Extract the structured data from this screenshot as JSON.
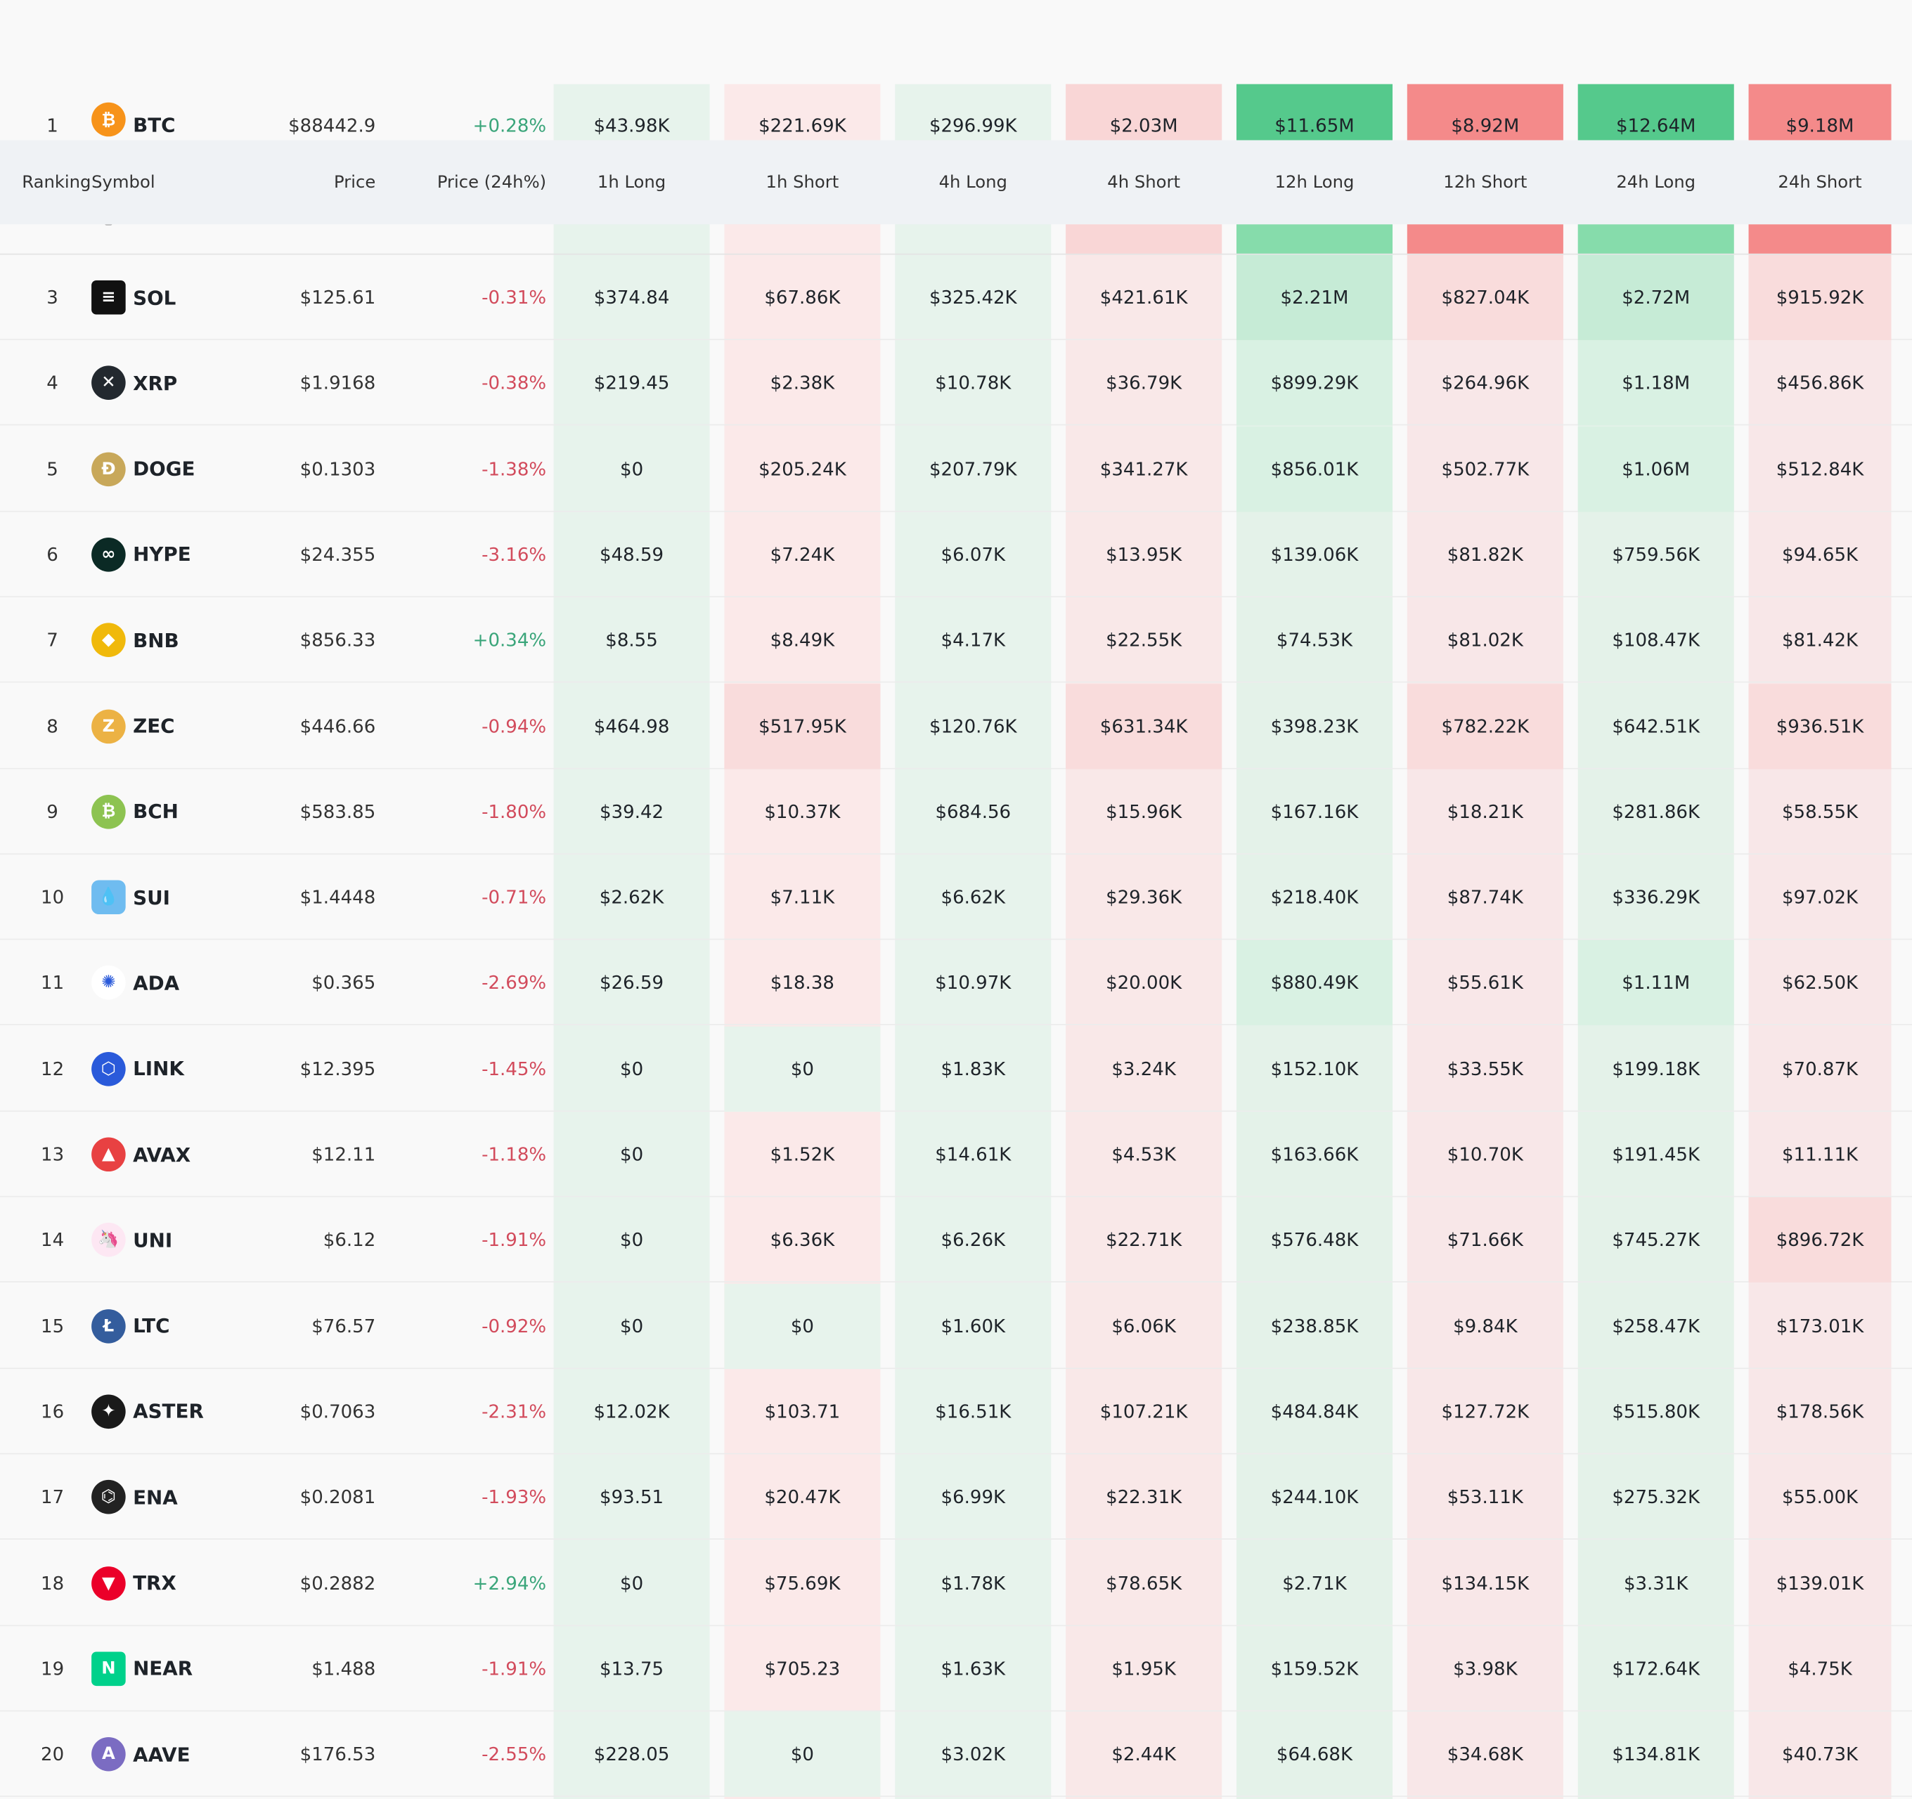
{
  "colors": {
    "long_col_bg": "#e6f3ec",
    "short_col_bg": "#fbe9e9",
    "positive_text": "#3aa57a",
    "negative_text": "#d24b5c",
    "header_bg": "#eff2f5"
  },
  "header": {
    "ranking": "Ranking",
    "symbol": "Symbol",
    "price": "Price",
    "price_change": "Price (24h%)",
    "h1_long": "1h Long",
    "h1_short": "1h Short",
    "h4_long": "4h Long",
    "h4_short": "4h Short",
    "h12_long": "12h Long",
    "h12_short": "12h Short",
    "h24_long": "24h Long",
    "h24_short": "24h Short"
  },
  "pinned_row": {
    "rank": "1",
    "symbol": "BTC",
    "icon": "bitcoin-icon",
    "price": "$88442.9",
    "change": "+0.28%",
    "dir": "up",
    "vals": [
      "$43.98K",
      "$221.69K",
      "$296.99K",
      "$2.03M",
      "$11.65M",
      "$8.92M",
      "$12.64M",
      "$9.18M"
    ]
  },
  "rows": [
    {
      "rank": "3",
      "symbol": "SOL",
      "icon": "solana-icon",
      "icon_bg": "#111111",
      "icon_char": "≡",
      "price": "$125.61",
      "change": "-0.31%",
      "dir": "down",
      "vals": [
        "$374.84",
        "$67.86K",
        "$325.42K",
        "$421.61K",
        "$2.21M",
        "$827.04K",
        "$2.72M",
        "$915.92K"
      ]
    },
    {
      "rank": "4",
      "symbol": "XRP",
      "icon": "xrp-icon",
      "icon_bg": "#23292f",
      "icon_char": "✕",
      "price": "$1.9168",
      "change": "-0.38%",
      "dir": "down",
      "vals": [
        "$219.45",
        "$2.38K",
        "$10.78K",
        "$36.79K",
        "$899.29K",
        "$264.96K",
        "$1.18M",
        "$456.86K"
      ]
    },
    {
      "rank": "5",
      "symbol": "DOGE",
      "icon": "dogecoin-icon",
      "icon_bg": "#c8a85a",
      "icon_char": "Ð",
      "price": "$0.1303",
      "change": "-1.38%",
      "dir": "down",
      "vals": [
        "$0",
        "$205.24K",
        "$207.79K",
        "$341.27K",
        "$856.01K",
        "$502.77K",
        "$1.06M",
        "$512.84K"
      ]
    },
    {
      "rank": "6",
      "symbol": "HYPE",
      "icon": "hyperliquid-icon",
      "icon_bg": "#0b2a25",
      "icon_char": "∞",
      "price": "$24.355",
      "change": "-3.16%",
      "dir": "down",
      "vals": [
        "$48.59",
        "$7.24K",
        "$6.07K",
        "$13.95K",
        "$139.06K",
        "$81.82K",
        "$759.56K",
        "$94.65K"
      ]
    },
    {
      "rank": "7",
      "symbol": "BNB",
      "icon": "bnb-icon",
      "icon_bg": "#f0b90b",
      "icon_char": "◆",
      "price": "$856.33",
      "change": "+0.34%",
      "dir": "up",
      "vals": [
        "$8.55",
        "$8.49K",
        "$4.17K",
        "$22.55K",
        "$74.53K",
        "$81.02K",
        "$108.47K",
        "$81.42K"
      ]
    },
    {
      "rank": "8",
      "symbol": "ZEC",
      "icon": "zcash-icon",
      "icon_bg": "#ecb244",
      "icon_char": "Z",
      "price": "$446.66",
      "change": "-0.94%",
      "dir": "down",
      "vals": [
        "$464.98",
        "$517.95K",
        "$120.76K",
        "$631.34K",
        "$398.23K",
        "$782.22K",
        "$642.51K",
        "$936.51K"
      ]
    },
    {
      "rank": "9",
      "symbol": "BCH",
      "icon": "bitcoin-cash-icon",
      "icon_bg": "#8dc351",
      "icon_char": "₿",
      "price": "$583.85",
      "change": "-1.80%",
      "dir": "down",
      "vals": [
        "$39.42",
        "$10.37K",
        "$684.56",
        "$15.96K",
        "$167.16K",
        "$18.21K",
        "$281.86K",
        "$58.55K"
      ]
    },
    {
      "rank": "10",
      "symbol": "SUI",
      "icon": "sui-icon",
      "icon_bg": "#6fbcf0",
      "icon_char": "💧",
      "price": "$1.4448",
      "change": "-0.71%",
      "dir": "down",
      "vals": [
        "$2.62K",
        "$7.11K",
        "$6.62K",
        "$29.36K",
        "$218.40K",
        "$87.74K",
        "$336.29K",
        "$97.02K"
      ]
    },
    {
      "rank": "11",
      "symbol": "ADA",
      "icon": "cardano-icon",
      "icon_bg": "#ffffff",
      "icon_char": "✺",
      "price": "$0.365",
      "change": "-2.69%",
      "dir": "down",
      "vals": [
        "$26.59",
        "$18.38",
        "$10.97K",
        "$20.00K",
        "$880.49K",
        "$55.61K",
        "$1.11M",
        "$62.50K"
      ]
    },
    {
      "rank": "12",
      "symbol": "LINK",
      "icon": "chainlink-icon",
      "icon_bg": "#2a5ada",
      "icon_char": "⬡",
      "price": "$12.395",
      "change": "-1.45%",
      "dir": "down",
      "vals": [
        "$0",
        "$0",
        "$1.83K",
        "$3.24K",
        "$152.10K",
        "$33.55K",
        "$199.18K",
        "$70.87K"
      ]
    },
    {
      "rank": "13",
      "symbol": "AVAX",
      "icon": "avalanche-icon",
      "icon_bg": "#e84142",
      "icon_char": "▲",
      "price": "$12.11",
      "change": "-1.18%",
      "dir": "down",
      "vals": [
        "$0",
        "$1.52K",
        "$14.61K",
        "$4.53K",
        "$163.66K",
        "$10.70K",
        "$191.45K",
        "$11.11K"
      ]
    },
    {
      "rank": "14",
      "symbol": "UNI",
      "icon": "uniswap-icon",
      "icon_bg": "#fde7f3",
      "icon_char": "🦄",
      "price": "$6.12",
      "change": "-1.91%",
      "dir": "down",
      "vals": [
        "$0",
        "$6.36K",
        "$6.26K",
        "$22.71K",
        "$576.48K",
        "$71.66K",
        "$745.27K",
        "$896.72K"
      ]
    },
    {
      "rank": "15",
      "symbol": "LTC",
      "icon": "litecoin-icon",
      "icon_bg": "#345d9d",
      "icon_char": "Ł",
      "price": "$76.57",
      "change": "-0.92%",
      "dir": "down",
      "vals": [
        "$0",
        "$0",
        "$1.60K",
        "$6.06K",
        "$238.85K",
        "$9.84K",
        "$258.47K",
        "$173.01K"
      ]
    },
    {
      "rank": "16",
      "symbol": "ASTER",
      "icon": "aster-icon",
      "icon_bg": "#1a1a1a",
      "icon_char": "✦",
      "price": "$0.7063",
      "change": "-2.31%",
      "dir": "down",
      "vals": [
        "$12.02K",
        "$103.71",
        "$16.51K",
        "$107.21K",
        "$484.84K",
        "$127.72K",
        "$515.80K",
        "$178.56K"
      ]
    },
    {
      "rank": "17",
      "symbol": "ENA",
      "icon": "ethena-icon",
      "icon_bg": "#222222",
      "icon_char": "⌬",
      "price": "$0.2081",
      "change": "-1.93%",
      "dir": "down",
      "vals": [
        "$93.51",
        "$20.47K",
        "$6.99K",
        "$22.31K",
        "$244.10K",
        "$53.11K",
        "$275.32K",
        "$55.00K"
      ]
    },
    {
      "rank": "18",
      "symbol": "TRX",
      "icon": "tron-icon",
      "icon_bg": "#eb0029",
      "icon_char": "▼",
      "price": "$0.2882",
      "change": "+2.94%",
      "dir": "up",
      "vals": [
        "$0",
        "$75.69K",
        "$1.78K",
        "$78.65K",
        "$2.71K",
        "$134.15K",
        "$3.31K",
        "$139.01K"
      ]
    },
    {
      "rank": "19",
      "symbol": "NEAR",
      "icon": "near-icon",
      "icon_bg": "#00d18b",
      "icon_char": "N",
      "price": "$1.488",
      "change": "-1.91%",
      "dir": "down",
      "vals": [
        "$13.75",
        "$705.23",
        "$1.63K",
        "$1.95K",
        "$159.52K",
        "$3.98K",
        "$172.64K",
        "$4.75K"
      ]
    },
    {
      "rank": "20",
      "symbol": "AAVE",
      "icon": "aave-icon",
      "icon_bg": "#7b6cc2",
      "icon_char": "A",
      "price": "$176.53",
      "change": "-2.55%",
      "dir": "down",
      "vals": [
        "$228.05",
        "$0",
        "$3.02K",
        "$2.44K",
        "$64.68K",
        "$34.68K",
        "$134.81K",
        "$40.73K"
      ]
    }
  ]
}
